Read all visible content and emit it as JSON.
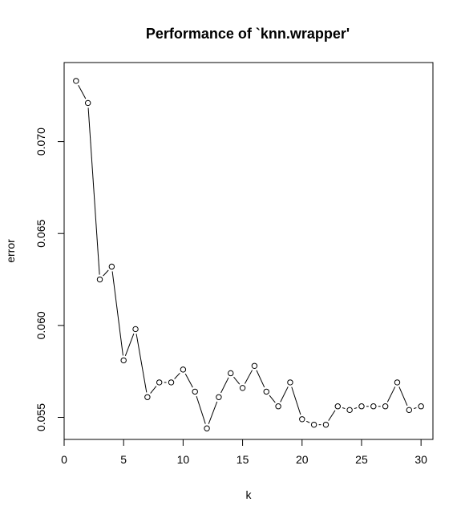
{
  "chart_data": {
    "type": "line",
    "title": "Performance of `knn.wrapper'",
    "xlabel": "k",
    "ylabel": "error",
    "xlim": [
      0,
      31
    ],
    "ylim": [
      0.0538,
      0.0743
    ],
    "x_ticks": [
      0,
      5,
      10,
      15,
      20,
      25,
      30
    ],
    "x_tick_labels": [
      "0",
      "5",
      "10",
      "15",
      "20",
      "25",
      "30"
    ],
    "y_ticks": [
      0.055,
      0.06,
      0.065,
      0.07
    ],
    "y_tick_labels": [
      "0.055",
      "0.060",
      "0.065",
      "0.070"
    ],
    "grid": false,
    "line_color": "#000000",
    "marker": "open-circle",
    "x": [
      1,
      2,
      3,
      4,
      5,
      6,
      7,
      8,
      9,
      10,
      11,
      12,
      13,
      14,
      15,
      16,
      17,
      18,
      19,
      20,
      21,
      22,
      23,
      24,
      25,
      26,
      27,
      28,
      29,
      30
    ],
    "y": [
      0.0733,
      0.0721,
      0.0625,
      0.0632,
      0.0581,
      0.0598,
      0.0561,
      0.0569,
      0.0569,
      0.0576,
      0.0564,
      0.0544,
      0.0561,
      0.0574,
      0.0566,
      0.0578,
      0.0564,
      0.0556,
      0.0569,
      0.0549,
      0.0546,
      0.0546,
      0.0556,
      0.0554,
      0.0556,
      0.0556,
      0.0556,
      0.0569,
      0.0554,
      0.0556
    ]
  }
}
